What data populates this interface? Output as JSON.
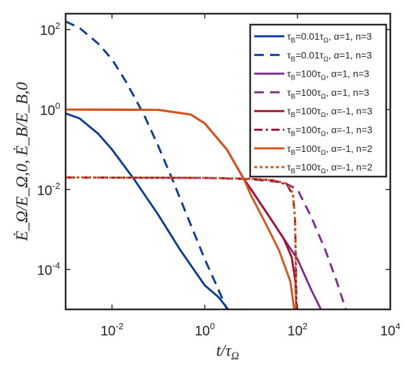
{
  "chart_data": {
    "type": "line",
    "xscale": "log",
    "yscale": "log",
    "xlim": [
      0.001,
      10000
    ],
    "ylim": [
      1e-05,
      250
    ],
    "xlabel": "t/τ_Ω",
    "ylabel": "Ė_Ω/E_Ω,0, Ė_B/E_B,0",
    "xlabel_display": {
      "main": "t/τ",
      "sub": "Ω"
    },
    "ylabel_display": "Ė_Ω/E_Ω,0, Ė_B/E_B,0",
    "xticks": [
      {
        "value": 0.01,
        "base": "10",
        "exp": "-2"
      },
      {
        "value": 1,
        "base": "10",
        "exp": "0"
      },
      {
        "value": 100,
        "base": "10",
        "exp": "2"
      },
      {
        "value": 10000,
        "base": "10",
        "exp": "4"
      }
    ],
    "yticks": [
      {
        "value": 0.0001,
        "base": "10",
        "exp": "-4"
      },
      {
        "value": 0.01,
        "base": "10",
        "exp": "-2"
      },
      {
        "value": 1,
        "base": "10",
        "exp": "0"
      },
      {
        "value": 100,
        "base": "10",
        "exp": "2"
      }
    ],
    "legend_position": "top-right",
    "series": [
      {
        "name": "τB=0.01τΩ, α=1, n=3",
        "legend": {
          "tau": "τ",
          "tauSub": "B",
          "mid": "=0.01",
          "tau2": "τ",
          "tau2Sub": "Ω",
          "rest": ", α=1, n=3"
        },
        "color": "#0a3a9a",
        "style": "solid",
        "points": [
          [
            0.001,
            0.8
          ],
          [
            0.002,
            0.6
          ],
          [
            0.005,
            0.25
          ],
          [
            0.01,
            0.1
          ],
          [
            0.03,
            0.018
          ],
          [
            0.1,
            0.0023
          ],
          [
            0.3,
            0.0003
          ],
          [
            1,
            4e-05
          ],
          [
            2,
            2e-05
          ],
          [
            3.2,
            1e-05
          ]
        ]
      },
      {
        "name": "τB=0.01τΩ, α=1, n=3",
        "legend": {
          "tau": "τ",
          "tauSub": "B",
          "mid": "=0.01",
          "tau2": "τ",
          "tau2Sub": "Ω",
          "rest": ", α=1, n=3"
        },
        "color": "#0a3a9a",
        "style": "dashed",
        "points": [
          [
            0.001,
            160
          ],
          [
            0.002,
            110
          ],
          [
            0.005,
            45
          ],
          [
            0.01,
            18
          ],
          [
            0.02,
            5
          ],
          [
            0.05,
            0.7
          ],
          [
            0.1,
            0.12
          ],
          [
            0.2,
            0.018
          ],
          [
            0.5,
            0.0013
          ],
          [
            1,
            0.00018
          ],
          [
            2,
            3e-05
          ],
          [
            3,
            1e-05
          ]
        ]
      },
      {
        "name": "τB=100τΩ, α=1, n=3",
        "legend": {
          "tau": "τ",
          "tauSub": "B",
          "mid": "=100",
          "tau2": "τ",
          "tau2Sub": "Ω",
          "rest": ", α=1, n=3"
        },
        "color": "#7e2f8e",
        "style": "solid",
        "points": [
          [
            0.001,
            1.0
          ],
          [
            0.1,
            0.98
          ],
          [
            0.5,
            0.75
          ],
          [
            1,
            0.45
          ],
          [
            3,
            0.1
          ],
          [
            7,
            0.018
          ],
          [
            10,
            0.01
          ],
          [
            20,
            0.003
          ],
          [
            50,
            0.0006
          ],
          [
            100,
            0.00018
          ],
          [
            200,
            3e-05
          ],
          [
            320,
            1e-05
          ]
        ]
      },
      {
        "name": "τB=100τΩ, α=1, n=3",
        "legend": {
          "tau": "τ",
          "tauSub": "B",
          "mid": "=100",
          "tau2": "τ",
          "tau2Sub": "Ω",
          "rest": ", α=1, n=3"
        },
        "color": "#7e2f8e",
        "style": "dashed",
        "points": [
          [
            0.001,
            0.02
          ],
          [
            1,
            0.0195
          ],
          [
            10,
            0.018
          ],
          [
            50,
            0.015
          ],
          [
            100,
            0.01
          ],
          [
            200,
            0.002
          ],
          [
            400,
            0.0003
          ],
          [
            700,
            5e-05
          ],
          [
            1100,
            1e-05
          ]
        ]
      },
      {
        "name": "τB=100τΩ, α=-1, n=3",
        "legend": {
          "tau": "τ",
          "tauSub": "B",
          "mid": "=100",
          "tau2": "τ",
          "tau2Sub": "Ω",
          "rest": ", α=-1, n=3"
        },
        "color": "#a2142f",
        "style": "solid",
        "points": [
          [
            0.001,
            1.0
          ],
          [
            0.1,
            0.98
          ],
          [
            0.5,
            0.75
          ],
          [
            1,
            0.45
          ],
          [
            3,
            0.1
          ],
          [
            7,
            0.018
          ],
          [
            10,
            0.01
          ],
          [
            20,
            0.003
          ],
          [
            50,
            0.0006
          ],
          [
            75,
            0.0002
          ],
          [
            90,
            5e-05
          ],
          [
            95,
            1e-05
          ]
        ]
      },
      {
        "name": "τB=100τΩ, α=-1, n=3",
        "legend": {
          "tau": "τ",
          "tauSub": "B",
          "mid": "=100",
          "tau2": "τ",
          "tau2Sub": "Ω",
          "rest": ", α=-1, n=3"
        },
        "color": "#a2142f",
        "style": "dashdot",
        "points": [
          [
            0.001,
            0.02
          ],
          [
            1,
            0.0195
          ],
          [
            10,
            0.0185
          ],
          [
            30,
            0.017
          ],
          [
            60,
            0.013
          ],
          [
            80,
            0.007
          ],
          [
            88,
            0.002
          ],
          [
            92,
            0.0002
          ],
          [
            95,
            1e-05
          ]
        ]
      },
      {
        "name": "τB=100τΩ, α=-1, n=2",
        "legend": {
          "tau": "τ",
          "tauSub": "B",
          "mid": "=100",
          "tau2": "τ",
          "tau2Sub": "Ω",
          "rest": ", α=-1, n=2"
        },
        "color": "#d95319",
        "style": "solid",
        "points": [
          [
            0.001,
            1.0
          ],
          [
            0.1,
            0.98
          ],
          [
            0.5,
            0.75
          ],
          [
            1,
            0.45
          ],
          [
            3,
            0.1
          ],
          [
            7,
            0.018
          ],
          [
            10,
            0.007
          ],
          [
            20,
            0.0015
          ],
          [
            40,
            0.0003
          ],
          [
            70,
            5e-05
          ],
          [
            85,
            1e-05
          ]
        ]
      },
      {
        "name": "τB=100τΩ, α=-1, n=2",
        "legend": {
          "tau": "τ",
          "tauSub": "B",
          "mid": "=100",
          "tau2": "τ",
          "tau2Sub": "Ω",
          "rest": ", α=-1, n=2"
        },
        "color": "#d95319",
        "style": "dotted",
        "points": [
          [
            0.001,
            0.02
          ],
          [
            1,
            0.0195
          ],
          [
            10,
            0.0185
          ],
          [
            30,
            0.017
          ],
          [
            60,
            0.014
          ],
          [
            80,
            0.008
          ],
          [
            88,
            0.002
          ],
          [
            91,
            0.0002
          ],
          [
            93,
            1e-05
          ]
        ]
      }
    ]
  }
}
